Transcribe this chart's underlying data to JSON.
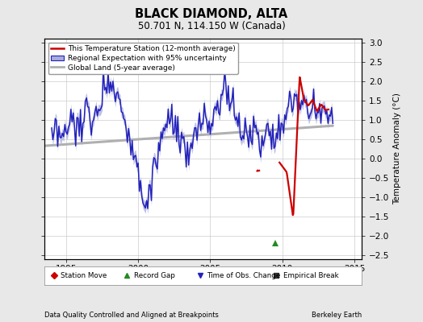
{
  "title": "BLACK DIAMOND, ALTA",
  "subtitle": "50.701 N, 114.150 W (Canada)",
  "ylabel": "Temperature Anomaly (°C)",
  "xlabel_left": "Data Quality Controlled and Aligned at Breakpoints",
  "xlabel_right": "Berkeley Earth",
  "xlim": [
    1993.5,
    2015.5
  ],
  "ylim": [
    -2.6,
    3.1
  ],
  "yticks": [
    -2.5,
    -2.0,
    -1.5,
    -1.0,
    -0.5,
    0.0,
    0.5,
    1.0,
    1.5,
    2.0,
    2.5,
    3.0
  ],
  "xticks": [
    1995,
    2000,
    2005,
    2010,
    2015
  ],
  "background_color": "#e8e8e8",
  "plot_bg_color": "#ffffff",
  "grid_color": "#cccccc",
  "regional_color": "#2222bb",
  "regional_fill_color": "#aaaadd",
  "station_color": "#cc0000",
  "global_color": "#b0b0b0",
  "green_marker_x": 2009.5,
  "green_marker_y": -2.18
}
